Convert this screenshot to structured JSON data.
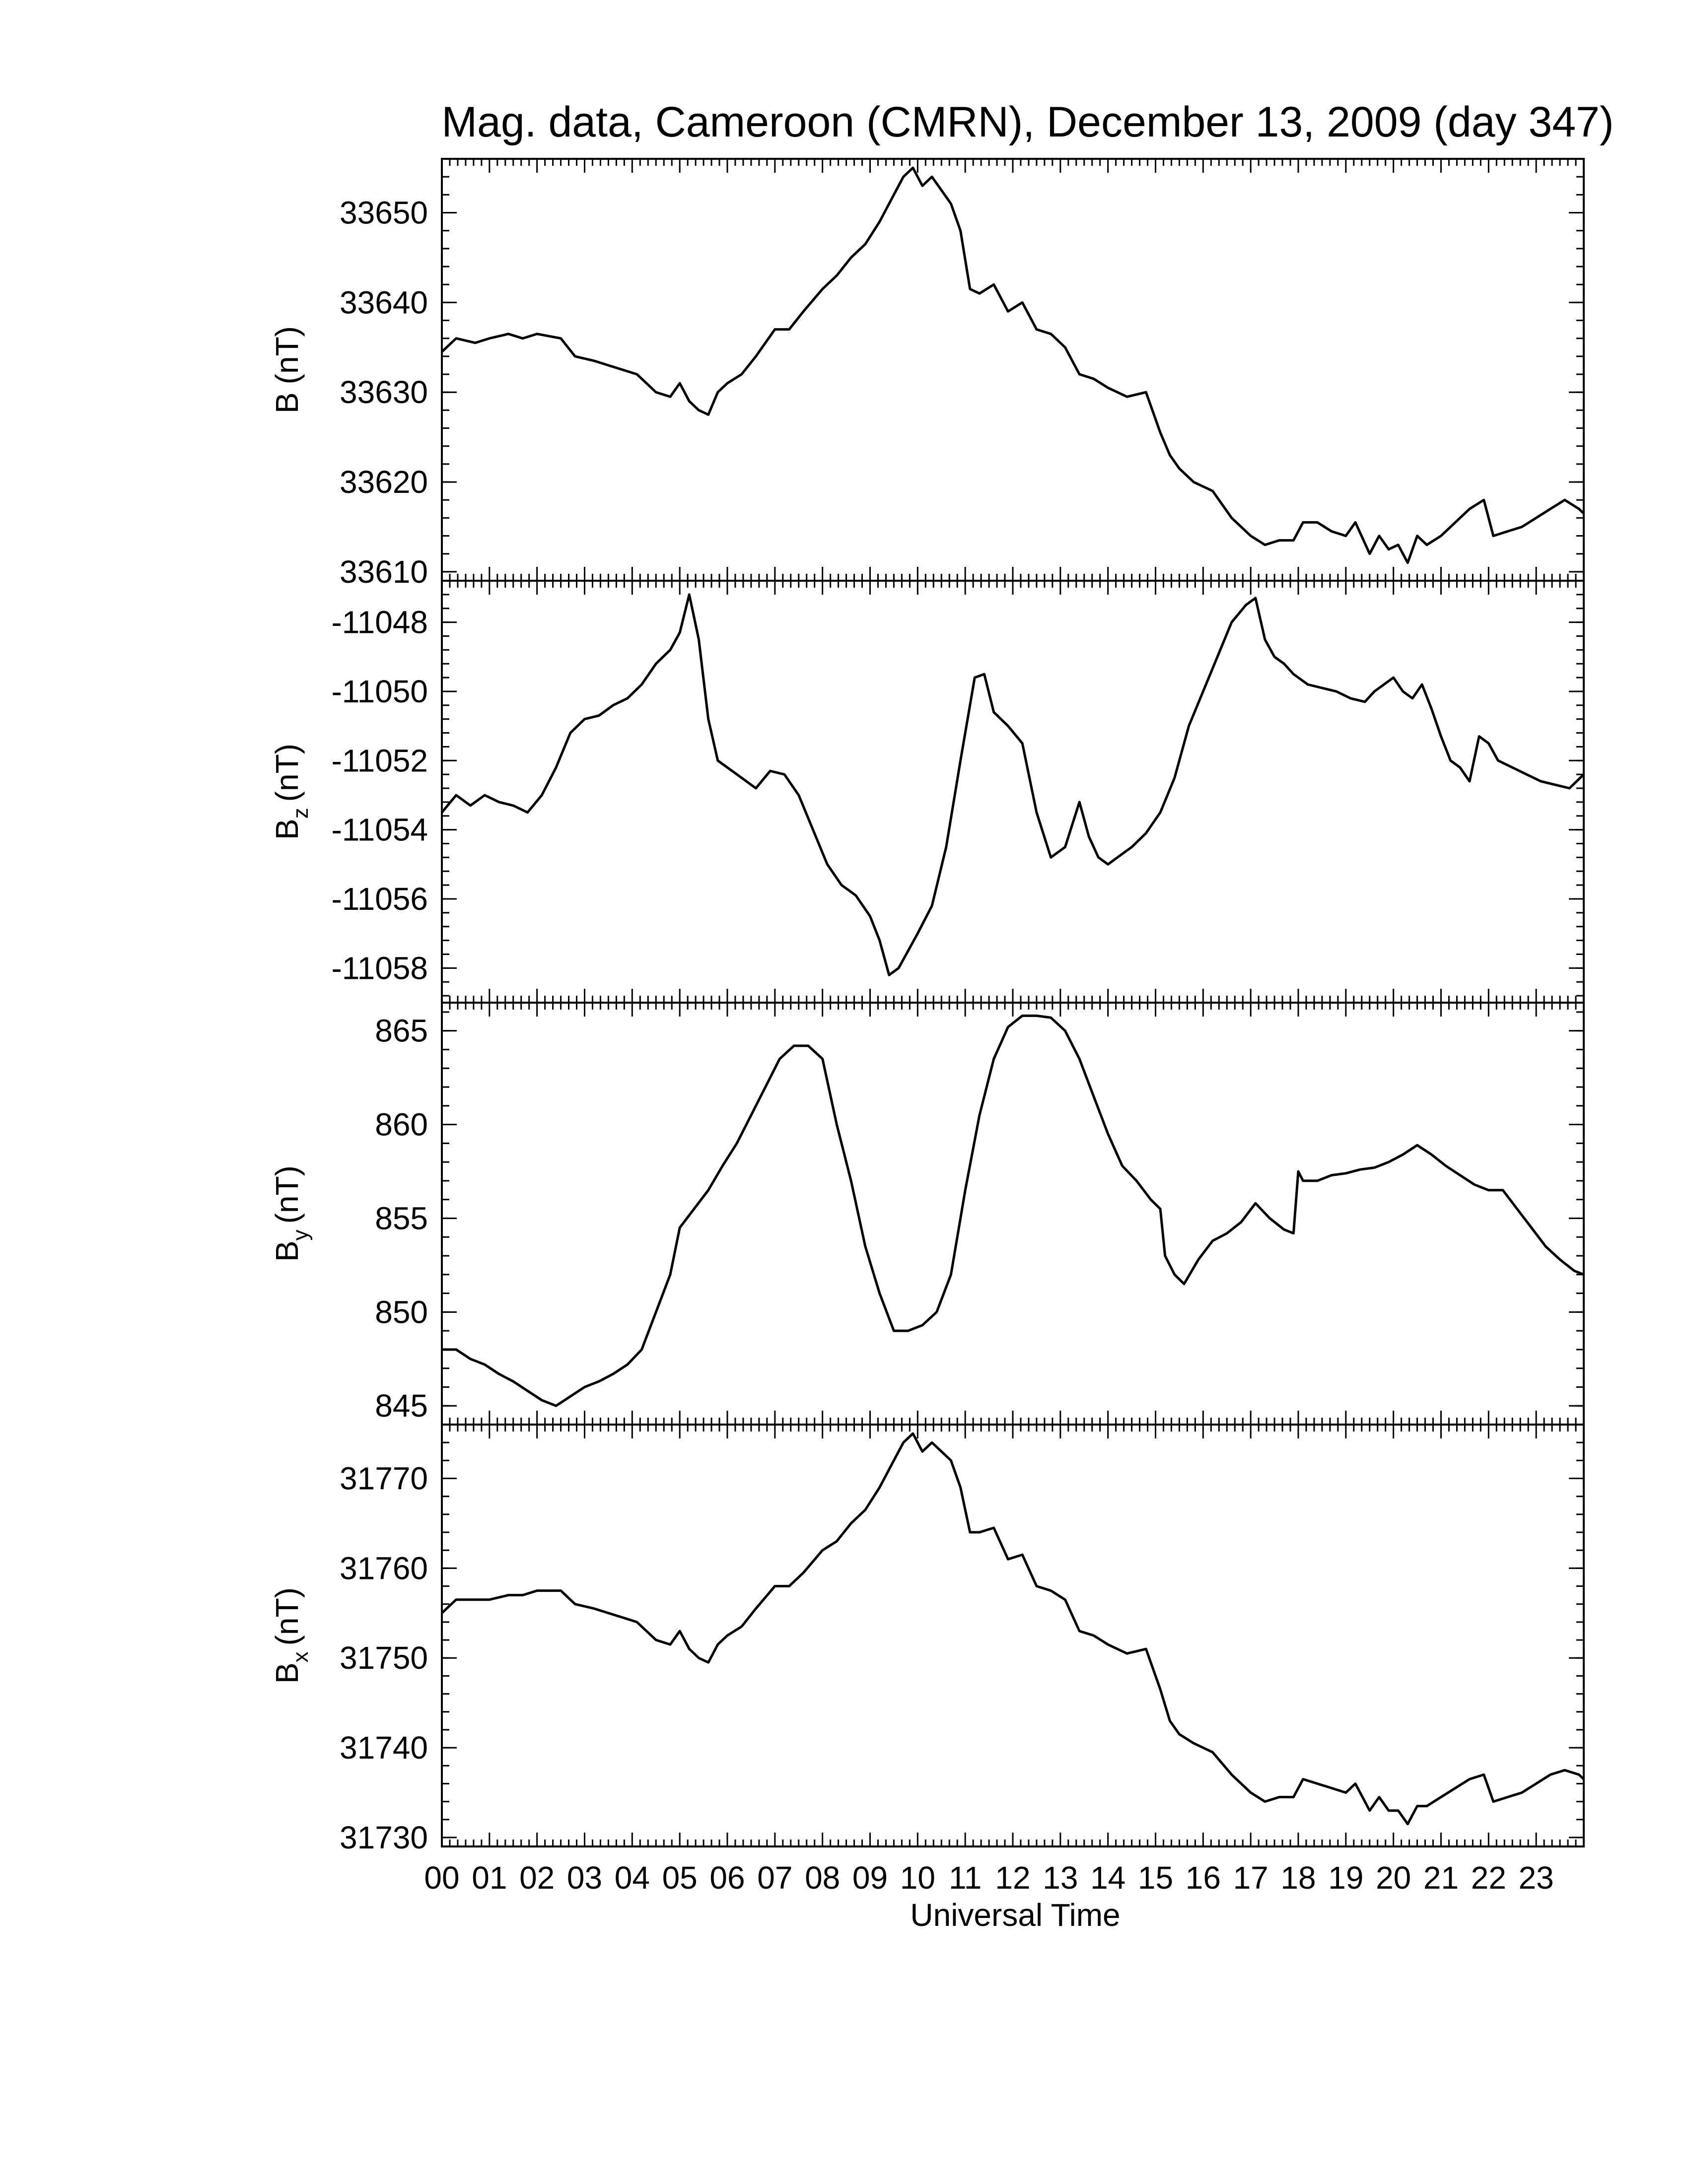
{
  "chart_data": {
    "title": "Mag. data, Cameroon (CMRN), December 13, 2009 (day 347)",
    "xlabel": "Universal Time",
    "x_tick_labels": [
      "00",
      "01",
      "02",
      "03",
      "04",
      "05",
      "06",
      "07",
      "08",
      "09",
      "10",
      "11",
      "12",
      "13",
      "14",
      "15",
      "16",
      "17",
      "18",
      "19",
      "20",
      "21",
      "22",
      "23"
    ],
    "xlim": [
      0,
      24
    ],
    "line_color": "#000000",
    "panels": [
      {
        "type": "line",
        "ylabel_main": "B",
        "ylabel_sub": "",
        "ylabel_unit": "(nT)",
        "ylim": [
          33609,
          33656
        ],
        "yticks": [
          33610,
          33620,
          33630,
          33640,
          33650
        ],
        "x": [
          0,
          0.3,
          0.7,
          1.0,
          1.4,
          1.7,
          2.0,
          2.5,
          2.8,
          3.2,
          3.5,
          3.8,
          4.1,
          4.5,
          4.8,
          5.0,
          5.2,
          5.4,
          5.6,
          5.8,
          6.0,
          6.3,
          6.6,
          7.0,
          7.3,
          7.6,
          8.0,
          8.3,
          8.6,
          8.9,
          9.2,
          9.5,
          9.7,
          9.9,
          10.1,
          10.3,
          10.5,
          10.7,
          10.9,
          11.1,
          11.3,
          11.6,
          11.9,
          12.2,
          12.5,
          12.8,
          13.1,
          13.4,
          13.7,
          14.0,
          14.4,
          14.8,
          15.1,
          15.3,
          15.5,
          15.8,
          16.2,
          16.6,
          17.0,
          17.3,
          17.6,
          17.9,
          18.1,
          18.4,
          18.7,
          19.0,
          19.2,
          19.5,
          19.7,
          19.9,
          20.1,
          20.3,
          20.5,
          20.7,
          21.0,
          21.3,
          21.6,
          21.9,
          22.1,
          22.4,
          22.7,
          23.0,
          23.3,
          23.6,
          23.9,
          24.0
        ],
        "y": [
          33634.5,
          33636,
          33635.5,
          33636,
          33636.5,
          33636,
          33636.5,
          33636,
          33634,
          33633.5,
          33633,
          33632.5,
          33632,
          33630,
          33629.5,
          33631,
          33629,
          33628,
          33627.5,
          33630,
          33631,
          33632,
          33634,
          33637,
          33637,
          33639,
          33641.5,
          33643,
          33645,
          33646.5,
          33649,
          33652,
          33654,
          33655,
          33653,
          33654,
          33652.5,
          33651,
          33648,
          33641.5,
          33641,
          33642,
          33639,
          33640,
          33637,
          33636.5,
          33635,
          33632,
          33631.5,
          33630.5,
          33629.5,
          33630,
          33625.5,
          33623,
          33621.5,
          33620,
          33619,
          33616,
          33614,
          33613,
          33613.5,
          33613.5,
          33615.5,
          33615.5,
          33614.5,
          33614,
          33615.5,
          33612,
          33614,
          33612.5,
          33613,
          33611,
          33614,
          33613,
          33614,
          33615.5,
          33617,
          33618,
          33614,
          33614.5,
          33615,
          33616,
          33617,
          33618,
          33617,
          33616.5
        ]
      },
      {
        "type": "line",
        "ylabel_main": "B",
        "ylabel_sub": "z",
        "ylabel_unit": "(nT)",
        "ylim": [
          -11059,
          -11046.8
        ],
        "yticks": [
          -11058,
          -11056,
          -11054,
          -11052,
          -11050,
          -11048
        ],
        "x": [
          0,
          0.3,
          0.6,
          0.9,
          1.2,
          1.5,
          1.8,
          2.1,
          2.4,
          2.7,
          3.0,
          3.3,
          3.6,
          3.9,
          4.2,
          4.5,
          4.8,
          5.0,
          5.2,
          5.4,
          5.6,
          5.8,
          6.0,
          6.3,
          6.6,
          6.9,
          7.2,
          7.5,
          7.8,
          8.1,
          8.4,
          8.7,
          9.0,
          9.2,
          9.4,
          9.6,
          9.8,
          10.0,
          10.3,
          10.6,
          10.9,
          11.2,
          11.4,
          11.6,
          11.9,
          12.2,
          12.5,
          12.8,
          13.1,
          13.4,
          13.6,
          13.8,
          14.0,
          14.2,
          14.5,
          14.8,
          15.1,
          15.4,
          15.7,
          16.0,
          16.3,
          16.6,
          16.9,
          17.1,
          17.3,
          17.5,
          17.7,
          17.9,
          18.2,
          18.5,
          18.8,
          19.1,
          19.4,
          19.6,
          19.8,
          20.0,
          20.2,
          20.4,
          20.6,
          20.8,
          21.0,
          21.2,
          21.4,
          21.6,
          21.8,
          22.0,
          22.2,
          22.5,
          22.8,
          23.1,
          23.4,
          23.7,
          24.0
        ],
        "y": [
          -11053.5,
          -11053,
          -11053.3,
          -11053,
          -11053.2,
          -11053.3,
          -11053.5,
          -11053,
          -11052.2,
          -11051.2,
          -11050.8,
          -11050.7,
          -11050.4,
          -11050.2,
          -11049.8,
          -11049.2,
          -11048.8,
          -11048.3,
          -11047.2,
          -11048.5,
          -11050.8,
          -11052,
          -11052.2,
          -11052.5,
          -11052.8,
          -11052.3,
          -11052.4,
          -11053,
          -11054,
          -11055,
          -11055.6,
          -11055.9,
          -11056.5,
          -11057.2,
          -11058.2,
          -11058,
          -11057.5,
          -11057,
          -11056.2,
          -11054.5,
          -11052,
          -11049.6,
          -11049.5,
          -11050.6,
          -11051,
          -11051.5,
          -11053.5,
          -11054.8,
          -11054.5,
          -11053.2,
          -11054.2,
          -11054.8,
          -11055,
          -11054.8,
          -11054.5,
          -11054.1,
          -11053.5,
          -11052.5,
          -11051,
          -11050,
          -11049,
          -11048,
          -11047.5,
          -11047.3,
          -11048.5,
          -11049,
          -11049.2,
          -11049.5,
          -11049.8,
          -11049.9,
          -11050,
          -11050.2,
          -11050.3,
          -11050,
          -11049.8,
          -11049.6,
          -11050,
          -11050.2,
          -11049.8,
          -11050.5,
          -11051.3,
          -11052,
          -11052.2,
          -11052.6,
          -11051.3,
          -11051.5,
          -11052,
          -11052.2,
          -11052.4,
          -11052.6,
          -11052.7,
          -11052.8,
          -11052.4
        ]
      },
      {
        "type": "line",
        "ylabel_main": "B",
        "ylabel_sub": "y",
        "ylabel_unit": "(nT)",
        "ylim": [
          844,
          866.5
        ],
        "yticks": [
          845,
          850,
          855,
          860,
          865
        ],
        "x": [
          0,
          0.3,
          0.6,
          0.9,
          1.2,
          1.5,
          1.8,
          2.1,
          2.4,
          2.7,
          3.0,
          3.3,
          3.6,
          3.9,
          4.2,
          4.5,
          4.8,
          5.0,
          5.3,
          5.6,
          5.9,
          6.2,
          6.5,
          6.8,
          7.1,
          7.4,
          7.7,
          8.0,
          8.3,
          8.6,
          8.9,
          9.2,
          9.5,
          9.8,
          10.1,
          10.4,
          10.7,
          11.0,
          11.3,
          11.6,
          11.9,
          12.2,
          12.5,
          12.8,
          13.1,
          13.4,
          13.7,
          14.0,
          14.3,
          14.6,
          14.9,
          15.1,
          15.2,
          15.4,
          15.6,
          15.9,
          16.2,
          16.5,
          16.8,
          17.1,
          17.4,
          17.7,
          17.9,
          18.0,
          18.1,
          18.4,
          18.7,
          19.0,
          19.3,
          19.6,
          19.9,
          20.2,
          20.5,
          20.8,
          21.1,
          21.4,
          21.7,
          22.0,
          22.3,
          22.6,
          22.9,
          23.2,
          23.5,
          23.8,
          24.0
        ],
        "y": [
          848,
          848,
          847.5,
          847.2,
          846.7,
          846.3,
          845.8,
          845.3,
          845,
          845.5,
          846,
          846.3,
          846.7,
          847.2,
          848,
          850,
          852,
          854.5,
          855.5,
          856.5,
          857.8,
          859,
          860.5,
          862,
          863.5,
          864.2,
          864.2,
          863.5,
          860,
          857,
          853.5,
          851,
          849,
          849,
          849.3,
          850,
          852,
          856.5,
          860.5,
          863.5,
          865.2,
          865.8,
          865.8,
          865.7,
          865,
          863.5,
          861.5,
          859.5,
          857.8,
          857,
          856,
          855.5,
          853,
          852,
          851.5,
          852.8,
          853.8,
          854.2,
          854.8,
          855.8,
          855,
          854.4,
          854.2,
          857.5,
          857,
          857,
          857.3,
          857.4,
          857.6,
          857.7,
          858,
          858.4,
          858.9,
          858.4,
          857.8,
          857.3,
          856.8,
          856.5,
          856.5,
          855.5,
          854.5,
          853.5,
          852.8,
          852.2,
          852
        ]
      },
      {
        "type": "line",
        "ylabel_main": "B",
        "ylabel_sub": "x",
        "ylabel_unit": "(nT)",
        "ylim": [
          31729,
          31776
        ],
        "yticks": [
          31730,
          31740,
          31750,
          31760,
          31770
        ],
        "x": [
          0,
          0.3,
          0.7,
          1.0,
          1.4,
          1.7,
          2.0,
          2.5,
          2.8,
          3.2,
          3.5,
          3.8,
          4.1,
          4.5,
          4.8,
          5.0,
          5.2,
          5.4,
          5.6,
          5.8,
          6.0,
          6.3,
          6.6,
          7.0,
          7.3,
          7.6,
          8.0,
          8.3,
          8.6,
          8.9,
          9.2,
          9.5,
          9.7,
          9.9,
          10.1,
          10.3,
          10.5,
          10.7,
          10.9,
          11.1,
          11.3,
          11.6,
          11.9,
          12.2,
          12.5,
          12.8,
          13.1,
          13.4,
          13.7,
          14.0,
          14.4,
          14.8,
          15.1,
          15.3,
          15.5,
          15.8,
          16.2,
          16.6,
          17.0,
          17.3,
          17.6,
          17.9,
          18.1,
          18.4,
          18.7,
          19.0,
          19.2,
          19.5,
          19.7,
          19.9,
          20.1,
          20.3,
          20.5,
          20.7,
          21.0,
          21.3,
          21.6,
          21.9,
          22.1,
          22.4,
          22.7,
          23.0,
          23.3,
          23.6,
          23.9,
          24.0
        ],
        "y": [
          31755,
          31756.5,
          31756.5,
          31756.5,
          31757,
          31757,
          31757.5,
          31757.5,
          31756,
          31755.5,
          31755,
          31754.5,
          31754,
          31752,
          31751.5,
          31753,
          31751,
          31750,
          31749.5,
          31751.5,
          31752.5,
          31753.5,
          31755.5,
          31758,
          31758,
          31759.5,
          31762,
          31763,
          31765,
          31766.5,
          31769,
          31772,
          31774,
          31775,
          31773,
          31774,
          31773,
          31772,
          31769,
          31764,
          31764,
          31764.5,
          31761,
          31761.5,
          31758,
          31757.5,
          31756.5,
          31753,
          31752.5,
          31751.5,
          31750.5,
          31751,
          31746.5,
          31743,
          31741.5,
          31740.5,
          31739.5,
          31737,
          31735,
          31734,
          31734.5,
          31734.5,
          31736.5,
          31736,
          31735.5,
          31735,
          31736,
          31733,
          31734.5,
          31733,
          31733,
          31731.5,
          31733.5,
          31733.5,
          31734.5,
          31735.5,
          31736.5,
          31737,
          31734,
          31734.5,
          31735,
          31736,
          31737,
          31737.5,
          31737,
          31736.5
        ]
      }
    ]
  }
}
